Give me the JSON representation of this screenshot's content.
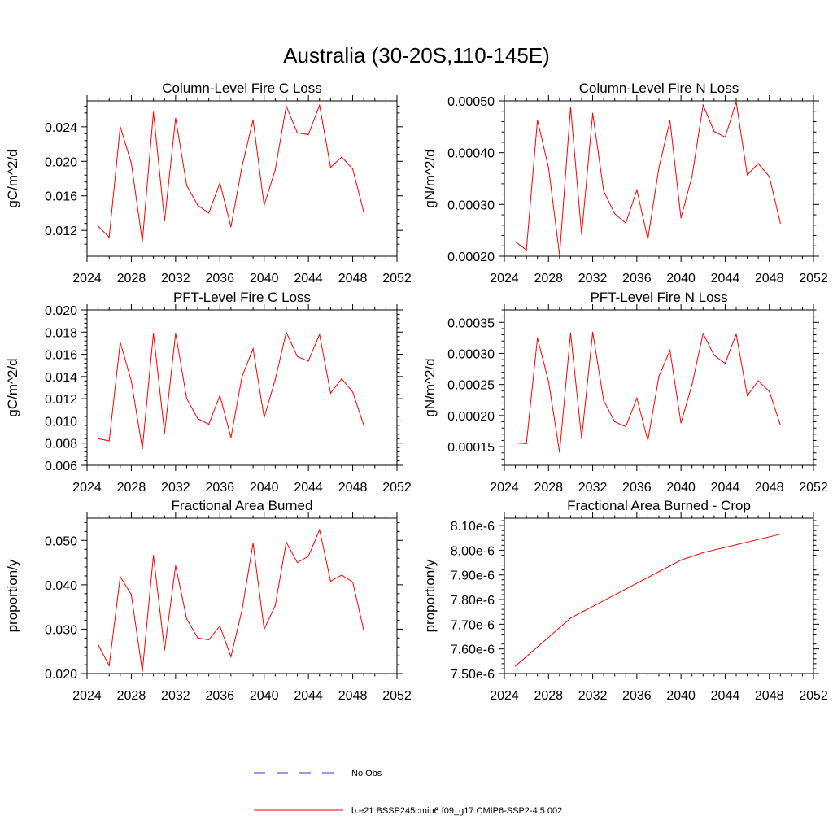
{
  "page_title": "Australia (30-20S,110-145E)",
  "legend": [
    {
      "label": "No Obs",
      "color": "#3333cc",
      "style": "dashed"
    },
    {
      "label": "b.e21.BSSP245cmip6.f09_g17.CMIP6-SSP2-4.5.002",
      "color": "#ff0000",
      "style": "solid"
    }
  ],
  "chart_data": [
    {
      "type": "line",
      "title": "Column-Level Fire C Loss",
      "xlabel": "",
      "ylabel": "gC/m^2/d",
      "xlim": [
        2024,
        2052
      ],
      "ylim": [
        0.009,
        0.027
      ],
      "xticks": [
        2024,
        2028,
        2032,
        2036,
        2040,
        2044,
        2048,
        2052
      ],
      "xtick_labels": [
        "2024",
        "2028",
        "2032",
        "2036",
        "2040",
        "2044",
        "2048",
        "2052"
      ],
      "yticks": [
        0.012,
        0.016,
        0.02,
        0.024
      ],
      "ytick_labels": [
        "0.012",
        "0.016",
        "0.020",
        "0.024"
      ],
      "x": [
        2025,
        2026,
        2027,
        2028,
        2029,
        2030,
        2031,
        2032,
        2033,
        2034,
        2035,
        2036,
        2037,
        2038,
        2039,
        2040,
        2041,
        2042,
        2043,
        2044,
        2045,
        2046,
        2047,
        2048,
        2049
      ],
      "series": [
        {
          "name": "b.e21.BSSP245cmip6.f09_g17.CMIP6-SSP2-4.5.002",
          "color": "#ff0000",
          "values": [
            0.0125,
            0.0112,
            0.024,
            0.0198,
            0.0107,
            0.0257,
            0.0131,
            0.025,
            0.0172,
            0.0149,
            0.014,
            0.0175,
            0.0124,
            0.0194,
            0.0248,
            0.0149,
            0.019,
            0.0264,
            0.0233,
            0.0231,
            0.0265,
            0.0193,
            0.0205,
            0.0191,
            0.0141
          ]
        }
      ]
    },
    {
      "type": "line",
      "title": "Column-Level Fire N Loss",
      "xlabel": "",
      "ylabel": "gN/m^2/d",
      "xlim": [
        2024,
        2052
      ],
      "ylim": [
        0.0002,
        0.0005
      ],
      "xticks": [
        2024,
        2028,
        2032,
        2036,
        2040,
        2044,
        2048,
        2052
      ],
      "xtick_labels": [
        "2024",
        "2028",
        "2032",
        "2036",
        "2040",
        "2044",
        "2048",
        "2052"
      ],
      "yticks": [
        0.0002,
        0.0003,
        0.0004,
        0.0005
      ],
      "ytick_labels": [
        "0.00020",
        "0.00030",
        "0.00040",
        "0.00050"
      ],
      "x": [
        2025,
        2026,
        2027,
        2028,
        2029,
        2030,
        2031,
        2032,
        2033,
        2034,
        2035,
        2036,
        2037,
        2038,
        2039,
        2040,
        2041,
        2042,
        2043,
        2044,
        2045,
        2046,
        2047,
        2048,
        2049
      ],
      "series": [
        {
          "name": "b.e21.BSSP245cmip6.f09_g17.CMIP6-SSP2-4.5.002",
          "color": "#ff0000",
          "values": [
            0.000228,
            0.000212,
            0.000463,
            0.000371,
            0.000202,
            0.000488,
            0.000242,
            0.000476,
            0.000326,
            0.000282,
            0.000264,
            0.000328,
            0.000233,
            0.000371,
            0.000462,
            0.000274,
            0.000354,
            0.000492,
            0.000441,
            0.00043,
            0.000498,
            0.000357,
            0.000379,
            0.000354,
            0.000264
          ]
        }
      ]
    },
    {
      "type": "line",
      "title": "PFT-Level Fire C Loss",
      "xlabel": "",
      "ylabel": "gC/m^2/d",
      "xlim": [
        2024,
        2052
      ],
      "ylim": [
        0.006,
        0.02
      ],
      "xticks": [
        2024,
        2028,
        2032,
        2036,
        2040,
        2044,
        2048,
        2052
      ],
      "xtick_labels": [
        "2024",
        "2028",
        "2032",
        "2036",
        "2040",
        "2044",
        "2048",
        "2052"
      ],
      "yticks": [
        0.006,
        0.008,
        0.01,
        0.012,
        0.014,
        0.016,
        0.018,
        0.02
      ],
      "ytick_labels": [
        "0.006",
        "0.008",
        "0.010",
        "0.012",
        "0.014",
        "0.016",
        "0.018",
        "0.020"
      ],
      "x": [
        2025,
        2026,
        2027,
        2028,
        2029,
        2030,
        2031,
        2032,
        2033,
        2034,
        2035,
        2036,
        2037,
        2038,
        2039,
        2040,
        2041,
        2042,
        2043,
        2044,
        2045,
        2046,
        2047,
        2048,
        2049
      ],
      "series": [
        {
          "name": "b.e21.BSSP245cmip6.f09_g17.CMIP6-SSP2-4.5.002",
          "color": "#ff0000",
          "values": [
            0.0084,
            0.0082,
            0.0171,
            0.0136,
            0.0075,
            0.0179,
            0.0089,
            0.0179,
            0.012,
            0.0102,
            0.0097,
            0.0123,
            0.0085,
            0.014,
            0.0165,
            0.0103,
            0.0137,
            0.018,
            0.0158,
            0.0154,
            0.0178,
            0.0125,
            0.0138,
            0.0126,
            0.0096
          ]
        }
      ]
    },
    {
      "type": "line",
      "title": "PFT-Level Fire N Loss",
      "xlabel": "",
      "ylabel": "gN/m^2/d",
      "xlim": [
        2024,
        2052
      ],
      "ylim": [
        0.00012,
        0.00037
      ],
      "xticks": [
        2024,
        2028,
        2032,
        2036,
        2040,
        2044,
        2048,
        2052
      ],
      "xtick_labels": [
        "2024",
        "2028",
        "2032",
        "2036",
        "2040",
        "2044",
        "2048",
        "2052"
      ],
      "yticks": [
        0.00015,
        0.0002,
        0.00025,
        0.0003,
        0.00035
      ],
      "ytick_labels": [
        "0.00015",
        "0.00020",
        "0.00025",
        "0.00030",
        "0.00035"
      ],
      "x": [
        2025,
        2026,
        2027,
        2028,
        2029,
        2030,
        2031,
        2032,
        2033,
        2034,
        2035,
        2036,
        2037,
        2038,
        2039,
        2040,
        2041,
        2042,
        2043,
        2044,
        2045,
        2046,
        2047,
        2048,
        2049
      ],
      "series": [
        {
          "name": "b.e21.BSSP245cmip6.f09_g17.CMIP6-SSP2-4.5.002",
          "color": "#ff0000",
          "values": [
            0.000156,
            0.000155,
            0.000325,
            0.000255,
            0.000141,
            0.000333,
            0.000163,
            0.000334,
            0.000224,
            0.00019,
            0.000182,
            0.000228,
            0.00016,
            0.000263,
            0.000305,
            0.000188,
            0.00025,
            0.000332,
            0.000297,
            0.000284,
            0.000331,
            0.000232,
            0.000256,
            0.000239,
            0.000185
          ]
        }
      ]
    },
    {
      "type": "line",
      "title": "Fractional Area Burned",
      "xlabel": "",
      "ylabel": "proportion/y",
      "xlim": [
        2024,
        2052
      ],
      "ylim": [
        0.02,
        0.055
      ],
      "xticks": [
        2024,
        2028,
        2032,
        2036,
        2040,
        2044,
        2048,
        2052
      ],
      "xtick_labels": [
        "2024",
        "2028",
        "2032",
        "2036",
        "2040",
        "2044",
        "2048",
        "2052"
      ],
      "yticks": [
        0.02,
        0.03,
        0.04,
        0.05
      ],
      "ytick_labels": [
        "0.020",
        "0.030",
        "0.040",
        "0.050"
      ],
      "x": [
        2025,
        2026,
        2027,
        2028,
        2029,
        2030,
        2031,
        2032,
        2033,
        2034,
        2035,
        2036,
        2037,
        2038,
        2039,
        2040,
        2041,
        2042,
        2043,
        2044,
        2045,
        2046,
        2047,
        2048,
        2049
      ],
      "series": [
        {
          "name": "b.e21.BSSP245cmip6.f09_g17.CMIP6-SSP2-4.5.002",
          "color": "#ff0000",
          "values": [
            0.0265,
            0.0218,
            0.0418,
            0.0378,
            0.0205,
            0.0466,
            0.0253,
            0.0443,
            0.0323,
            0.028,
            0.0276,
            0.0307,
            0.0238,
            0.0343,
            0.0494,
            0.03,
            0.0353,
            0.0496,
            0.045,
            0.0464,
            0.0524,
            0.0408,
            0.0422,
            0.0406,
            0.0297
          ]
        }
      ]
    },
    {
      "type": "line",
      "title": "Fractional Area Burned - Crop",
      "xlabel": "",
      "ylabel": "proportion/y",
      "xlim": [
        2024,
        2052
      ],
      "ylim": [
        7.5e-06,
        8.13e-06
      ],
      "xticks": [
        2024,
        2028,
        2032,
        2036,
        2040,
        2044,
        2048,
        2052
      ],
      "xtick_labels": [
        "2024",
        "2028",
        "2032",
        "2036",
        "2040",
        "2044",
        "2048",
        "2052"
      ],
      "yticks": [
        7.5e-06,
        7.6e-06,
        7.7e-06,
        7.8e-06,
        7.9e-06,
        8e-06,
        8.1e-06
      ],
      "ytick_labels": [
        "7.50e-6",
        "7.60e-6",
        "7.70e-6",
        "7.80e-6",
        "7.90e-6",
        "8.00e-6",
        "8.10e-6"
      ],
      "x": [
        2025,
        2030,
        2040,
        2042,
        2049
      ],
      "series": [
        {
          "name": "b.e21.BSSP245cmip6.f09_g17.CMIP6-SSP2-4.5.002",
          "color": "#ff0000",
          "values": [
            7.53e-06,
            7.725e-06,
            7.96e-06,
            7.99e-06,
            8.065e-06
          ]
        }
      ]
    }
  ]
}
